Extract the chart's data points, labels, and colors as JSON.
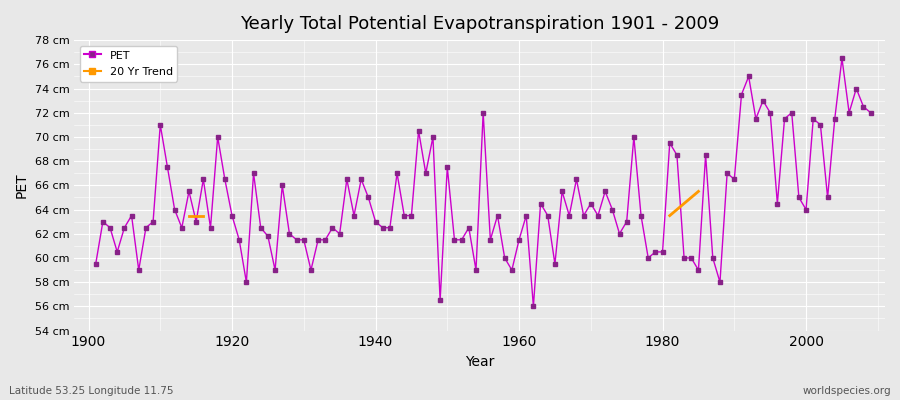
{
  "title": "Yearly Total Potential Evapotranspiration 1901 - 2009",
  "xlabel": "Year",
  "ylabel": "PET",
  "subtitle_left": "Latitude 53.25 Longitude 11.75",
  "subtitle_right": "worldspecies.org",
  "ylim": [
    54,
    78
  ],
  "ytick_labels": [
    "54 cm",
    "56 cm",
    "58 cm",
    "60 cm",
    "62 cm",
    "64 cm",
    "66 cm",
    "68 cm",
    "70 cm",
    "72 cm",
    "74 cm",
    "76 cm",
    "78 cm"
  ],
  "ytick_values": [
    54,
    56,
    58,
    60,
    62,
    64,
    66,
    68,
    70,
    72,
    74,
    76,
    78
  ],
  "background_color": "#e8e8e8",
  "plot_bg_color": "#e8e8e8",
  "pet_color": "#cc00cc",
  "trend_color": "#ff9900",
  "legend_pet_color": "#882288",
  "years": [
    1901,
    1902,
    1903,
    1904,
    1905,
    1906,
    1907,
    1908,
    1909,
    1910,
    1911,
    1912,
    1913,
    1914,
    1915,
    1916,
    1917,
    1918,
    1919,
    1920,
    1921,
    1922,
    1923,
    1924,
    1925,
    1926,
    1927,
    1928,
    1929,
    1930,
    1931,
    1932,
    1933,
    1934,
    1935,
    1936,
    1937,
    1938,
    1939,
    1940,
    1941,
    1942,
    1943,
    1944,
    1945,
    1946,
    1947,
    1948,
    1949,
    1950,
    1951,
    1952,
    1953,
    1954,
    1955,
    1956,
    1957,
    1958,
    1959,
    1960,
    1961,
    1962,
    1963,
    1964,
    1965,
    1966,
    1967,
    1968,
    1969,
    1970,
    1971,
    1972,
    1973,
    1974,
    1975,
    1976,
    1977,
    1978,
    1979,
    1980,
    1981,
    1982,
    1983,
    1984,
    1985,
    1986,
    1987,
    1988,
    1989,
    1990,
    1991,
    1992,
    1993,
    1994,
    1995,
    1996,
    1997,
    1998,
    1999,
    2000,
    2001,
    2002,
    2003,
    2004,
    2005,
    2006,
    2007,
    2008,
    2009
  ],
  "pet_values": [
    59.5,
    63.0,
    62.5,
    60.5,
    62.5,
    63.5,
    59.0,
    62.5,
    63.0,
    71.0,
    67.5,
    64.0,
    62.5,
    65.5,
    63.0,
    66.5,
    62.5,
    70.0,
    66.5,
    63.5,
    61.5,
    58.0,
    67.0,
    62.5,
    61.8,
    59.0,
    66.0,
    62.0,
    61.5,
    61.5,
    59.0,
    61.5,
    61.5,
    62.5,
    62.0,
    66.5,
    63.5,
    66.5,
    65.0,
    63.0,
    62.5,
    62.5,
    67.0,
    63.5,
    63.5,
    70.5,
    67.0,
    70.0,
    56.5,
    67.5,
    61.5,
    61.5,
    62.5,
    59.0,
    72.0,
    61.5,
    63.5,
    60.0,
    59.0,
    61.5,
    63.5,
    56.0,
    64.5,
    63.5,
    59.5,
    65.5,
    63.5,
    66.5,
    63.5,
    64.5,
    63.5,
    65.5,
    64.0,
    62.0,
    63.0,
    70.0,
    63.5,
    60.0,
    60.5,
    60.5,
    69.5,
    68.5,
    60.0,
    60.0,
    59.0,
    68.5,
    60.0,
    58.0,
    67.0,
    66.5,
    73.5,
    75.0,
    71.5,
    73.0,
    72.0,
    64.5,
    71.5,
    72.0,
    65.0,
    64.0,
    71.5,
    71.0,
    65.0,
    71.5,
    76.5,
    72.0,
    74.0,
    72.5,
    72.0
  ],
  "trend_years": [
    1915,
    1984,
    1985
  ],
  "trend_values": [
    63.5,
    63.7,
    65.2
  ]
}
